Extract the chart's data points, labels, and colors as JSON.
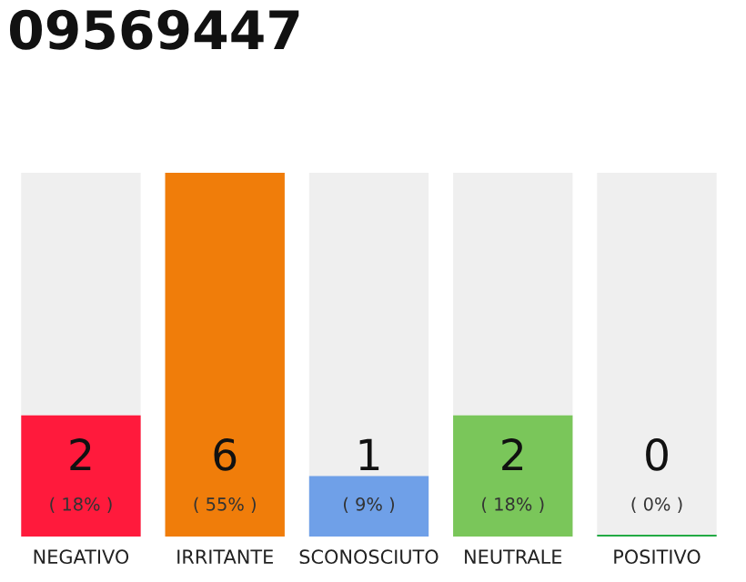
{
  "chart_data": {
    "type": "bar",
    "title": "09569447",
    "categories": [
      "NEGATIVO",
      "IRRITANTE",
      "SCONOSCIUTO",
      "NEUTRALE",
      "POSITIVO"
    ],
    "values": [
      2,
      6,
      1,
      2,
      0
    ],
    "colors": [
      "#ff1a3c",
      "#f07d0a",
      "#6fa0e8",
      "#7ac65a",
      "#22aa44"
    ],
    "value_labels": [
      "2\n( 18% )",
      "6\n( 55% )",
      "1\n( 9% )",
      "2\n( 18% )",
      "0\n( 0% )"
    ],
    "grid": false
  }
}
